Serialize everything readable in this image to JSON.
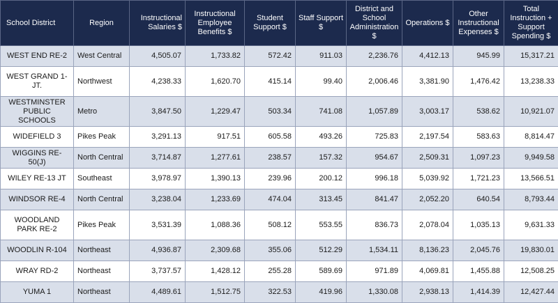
{
  "headers": [
    "School District",
    "Region",
    "Instructional Salaries $",
    "Instructional Employee Benefits $",
    "Student Support $",
    "Staff Support $",
    "District and School Administration $",
    "Operations $",
    "Other Instructional Expenses $",
    "Total Instruction + Support Spending $"
  ],
  "rows": [
    [
      "WEST END RE-2",
      "West Central",
      "4,505.07",
      "1,733.82",
      "572.42",
      "911.03",
      "2,236.76",
      "4,412.13",
      "945.99",
      "15,317.21"
    ],
    [
      "WEST GRAND 1-JT.",
      "Northwest",
      "4,238.33",
      "1,620.70",
      "415.14",
      "99.40",
      "2,006.46",
      "3,381.90",
      "1,476.42",
      "13,238.33"
    ],
    [
      "WESTMINSTER PUBLIC SCHOOLS",
      "Metro",
      "3,847.50",
      "1,229.47",
      "503.34",
      "741.08",
      "1,057.89",
      "3,003.17",
      "538.62",
      "10,921.07"
    ],
    [
      "WIDEFIELD 3",
      "Pikes Peak",
      "3,291.13",
      "917.51",
      "605.58",
      "493.26",
      "725.83",
      "2,197.54",
      "583.63",
      "8,814.47"
    ],
    [
      "WIGGINS RE-50(J)",
      "North Central",
      "3,714.87",
      "1,277.61",
      "238.57",
      "157.32",
      "954.67",
      "2,509.31",
      "1,097.23",
      "9,949.58"
    ],
    [
      "WILEY RE-13 JT",
      "Southeast",
      "3,978.97",
      "1,390.13",
      "239.96",
      "200.12",
      "996.18",
      "5,039.92",
      "1,721.23",
      "13,566.51"
    ],
    [
      "WINDSOR RE-4",
      "North Central",
      "3,238.04",
      "1,233.69",
      "474.04",
      "313.45",
      "841.47",
      "2,052.20",
      "640.54",
      "8,793.44"
    ],
    [
      "WOODLAND PARK RE-2",
      "Pikes Peak",
      "3,531.39",
      "1,088.36",
      "508.12",
      "553.55",
      "836.73",
      "2,078.04",
      "1,035.13",
      "9,631.33"
    ],
    [
      "WOODLIN R-104",
      "Northeast",
      "4,936.87",
      "2,309.68",
      "355.06",
      "512.29",
      "1,534.11",
      "8,136.23",
      "2,045.76",
      "19,830.01"
    ],
    [
      "WRAY RD-2",
      "Northeast",
      "3,737.57",
      "1,428.12",
      "255.28",
      "589.69",
      "971.89",
      "4,069.81",
      "1,455.88",
      "12,508.25"
    ],
    [
      "YUMA 1",
      "Northeast",
      "4,489.61",
      "1,512.75",
      "322.53",
      "419.96",
      "1,330.08",
      "2,938.13",
      "1,414.39",
      "12,427.44"
    ]
  ],
  "colors": {
    "header_bg": "#1c2a4d",
    "header_text": "#ffffff",
    "row_shade": "#d9dfea",
    "row_plain": "#ffffff"
  }
}
